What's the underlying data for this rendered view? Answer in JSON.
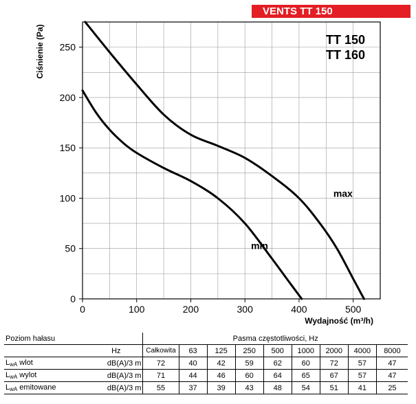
{
  "header": {
    "badge": "VENTS TT 150",
    "models": [
      "TT 150",
      "TT 160"
    ]
  },
  "colors": {
    "badge": "#e31e24",
    "curve": "#000000",
    "grid": "#9a9a9a"
  },
  "chart_data": {
    "type": "line",
    "xlabel": "Wydajność (m³/h)",
    "ylabel": "Ciśnienie (Pa)",
    "xlim": [
      0,
      550
    ],
    "ylim": [
      0,
      275
    ],
    "grid": true,
    "x_ticks": [
      0,
      100,
      200,
      300,
      400,
      500
    ],
    "y_ticks": [
      0,
      50,
      100,
      150,
      200,
      250
    ],
    "series": [
      {
        "name": "max",
        "x": [
          5,
          50,
          100,
          150,
          200,
          250,
          300,
          350,
          400,
          440,
          470,
          500,
          520
        ],
        "y": [
          275,
          245,
          213,
          183,
          163,
          152,
          140,
          122,
          100,
          74,
          50,
          20,
          0
        ]
      },
      {
        "name": "min",
        "x": [
          0,
          25,
          50,
          75,
          100,
          150,
          200,
          250,
          300,
          350,
          380,
          405
        ],
        "y": [
          207,
          185,
          168,
          155,
          145,
          130,
          117,
          100,
          75,
          40,
          18,
          0
        ]
      }
    ]
  },
  "noise_table": {
    "title": "Poziom hałasu",
    "hz_label": "Hz",
    "bands_title": "Pasma częstotliwości, Hz",
    "columns": [
      "Całkowita",
      "63",
      "125",
      "250",
      "500",
      "1000",
      "2000",
      "4000",
      "8000"
    ],
    "rows": [
      {
        "name": "wlot",
        "unit": "dB(A)/3 m",
        "values": [
          "72",
          "40",
          "42",
          "59",
          "62",
          "60",
          "72",
          "57",
          "47"
        ]
      },
      {
        "name": "wylot",
        "unit": "dB(A)/3 m",
        "values": [
          "71",
          "44",
          "46",
          "60",
          "64",
          "65",
          "67",
          "57",
          "47"
        ]
      },
      {
        "name": "emitowane",
        "unit": "dB(A)/3 m",
        "values": [
          "55",
          "37",
          "39",
          "43",
          "48",
          "54",
          "51",
          "41",
          "25"
        ]
      }
    ],
    "row_label_prefix": "L",
    "row_label_sub": "wA"
  }
}
